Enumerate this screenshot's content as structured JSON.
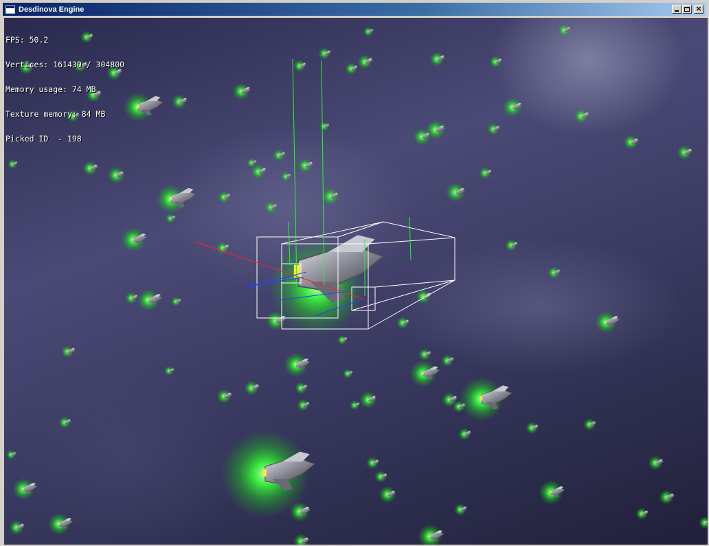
{
  "window": {
    "title": "Desdinova Engine",
    "minimize_label": "_",
    "maximize_label": "□",
    "close_label": "×"
  },
  "hud": {
    "fps": "FPS: 50.2",
    "vertices": "Vertices: 161430 / 304800",
    "memory": "Memory usage: 74 MB",
    "texture": "Texture memory: 84 MB",
    "picked": "Picked ID  - 198"
  },
  "colors": {
    "glow": "#3cff3c",
    "bbox": "#ffffff",
    "axis_x": "#ff2020",
    "axis_y": "#20ff20",
    "axis_z": "#2040ff"
  }
}
